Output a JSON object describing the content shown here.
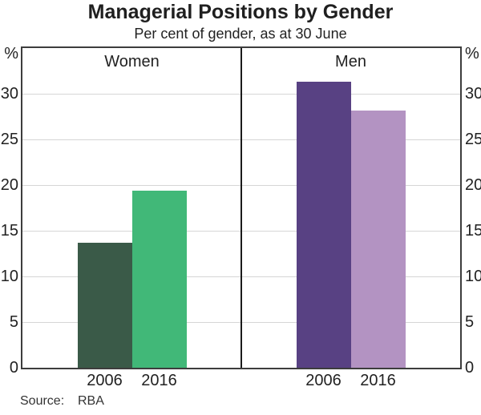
{
  "chart_data": {
    "type": "bar",
    "title": "Managerial Positions by Gender",
    "subtitle": "Per cent of gender, as at 30 June",
    "ylabel": "%",
    "ylim": [
      0,
      35
    ],
    "yticks": [
      0,
      5,
      10,
      15,
      20,
      25,
      30
    ],
    "gridlines": [
      5,
      10,
      15,
      20,
      25,
      30
    ],
    "grid": true,
    "legend_position": "none",
    "panels": [
      {
        "label": "Women",
        "categories": [
          "2006",
          "2016"
        ],
        "values": [
          13.7,
          19.4
        ],
        "colors": [
          "#3A5A48",
          "#41B878"
        ]
      },
      {
        "label": "Men",
        "categories": [
          "2006",
          "2016"
        ],
        "values": [
          31.3,
          28.2
        ],
        "colors": [
          "#584183",
          "#B393C2"
        ]
      }
    ]
  },
  "source": {
    "label": "Source:",
    "value": "RBA"
  },
  "colors": {
    "axis_frame": "#3d3d3d",
    "gridline": "#d6d6d6",
    "panel_divider": "#1a1a1a",
    "text": "#222222"
  }
}
